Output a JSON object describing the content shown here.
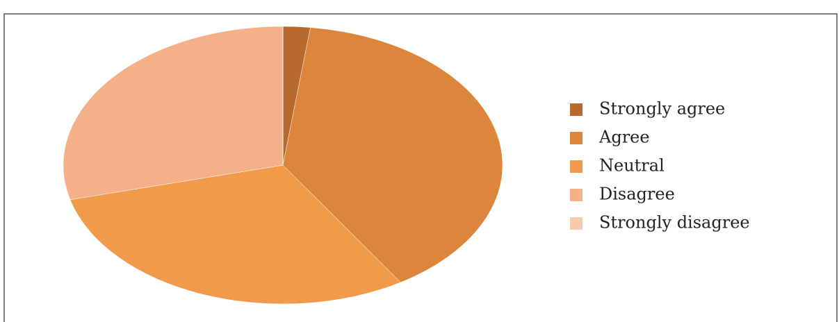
{
  "chart_data": {
    "type": "pie",
    "categories": [
      "Strongly agree",
      "Agree",
      "Neutral",
      "Disagree",
      "Strongly disagree"
    ],
    "values": [
      2,
      39,
      30,
      29,
      0
    ],
    "colors": [
      "#b8692d",
      "#db853d",
      "#f19a4b",
      "#f4b189",
      "#f8caa9"
    ],
    "legend": "right"
  }
}
